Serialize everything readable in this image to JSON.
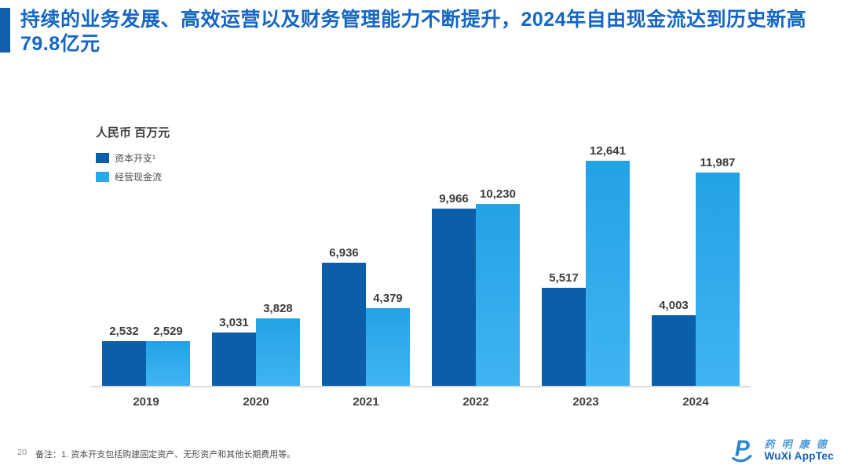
{
  "slide": {
    "title": "持续的业务发展、高效运营以及财务管理能力不断提升，2024年自由现金流达到历史新高79.8亿元",
    "page_number": "20",
    "footnote": "备注：1. 资本开支包括购建固定资产、无形资产和其他长期费用等。",
    "logo": {
      "cn": "药明康德",
      "en": "WuXi AppTec"
    }
  },
  "chart_data": {
    "type": "bar",
    "title": "",
    "unit_label": "人民币 百万元",
    "categories": [
      "2019",
      "2020",
      "2021",
      "2022",
      "2023",
      "2024"
    ],
    "series": [
      {
        "name": "资本开支¹",
        "color": "#0B5FA9",
        "values": [
          2532,
          3031,
          6936,
          9966,
          5517,
          4003
        ],
        "labels": [
          "2,532",
          "3,031",
          "6,936",
          "9,966",
          "5,517",
          "4,003"
        ]
      },
      {
        "name": "经营现金流",
        "color": "#29A9E9",
        "color_top": "#23A2E6",
        "color_bottom": "#41B4F2",
        "values": [
          2529,
          3828,
          4379,
          10230,
          12641,
          11987
        ],
        "labels": [
          "2,529",
          "3,828",
          "4,379",
          "10,230",
          "12,641",
          "11,987"
        ]
      }
    ],
    "xlabel": "",
    "ylabel": "人民币 百万元",
    "ylim": [
      0,
      13000
    ],
    "grid": false,
    "legend_position": "top-left",
    "value_labels": true
  },
  "colors": {
    "title_blue": "#1666C4",
    "accent_bar": "#1560AE",
    "capex_bar": "#0B5FA9",
    "cashflow_bar": "#29A9E9",
    "axis_line": "#DADADA",
    "label_text": "#3C3C3C"
  }
}
